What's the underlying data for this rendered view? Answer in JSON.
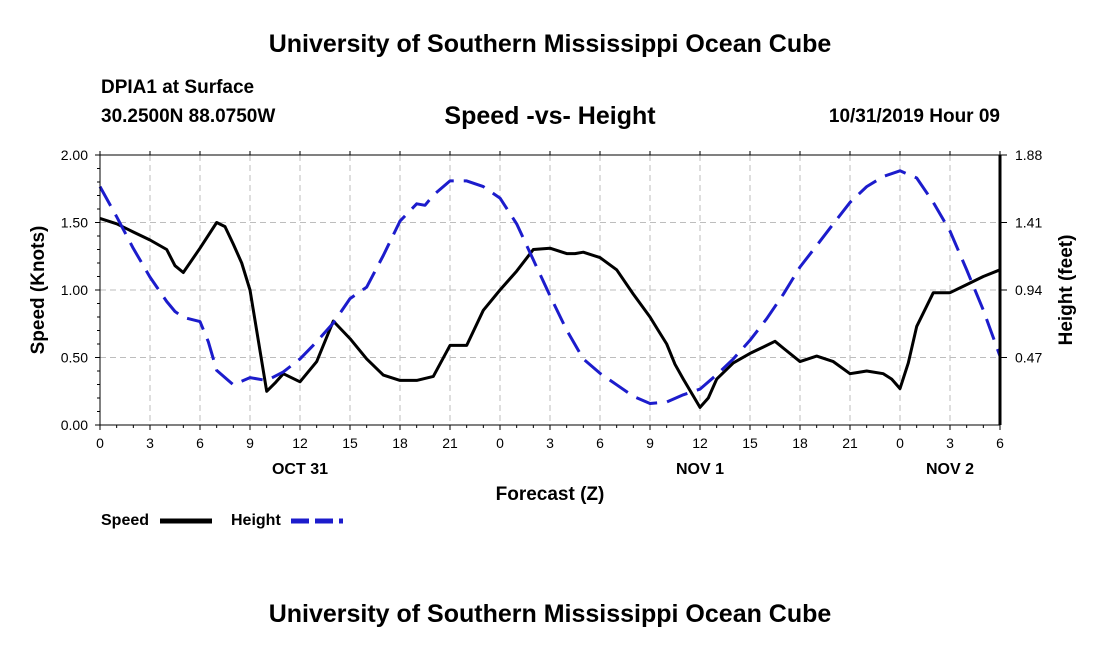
{
  "header": {
    "title": "University of Southern Mississippi Ocean Cube",
    "station": "DPIA1 at Surface",
    "coordinates": "30.2500N 88.0750W",
    "subtitle": "Speed -vs- Height",
    "datetime": "10/31/2019 Hour 09"
  },
  "footer": {
    "title": "University of Southern Mississippi Ocean Cube"
  },
  "chart_data": {
    "type": "line",
    "title": "Speed -vs- Height",
    "xlabel": "Forecast (Z)",
    "ylabel": "Speed (Knots)",
    "y2label": "Height (feet)",
    "xlim": [
      0,
      54
    ],
    "ylim": [
      0,
      2.0
    ],
    "y2lim": [
      0.0,
      1.88
    ],
    "grid": true,
    "legend_position": "bottom-left",
    "x_ticks": [
      0,
      3,
      6,
      9,
      12,
      15,
      18,
      21,
      24,
      27,
      30,
      33,
      36,
      39,
      42,
      45,
      48,
      51,
      54
    ],
    "x_tick_labels": [
      "0",
      "3",
      "6",
      "9",
      "12",
      "15",
      "18",
      "21",
      "0",
      "3",
      "6",
      "9",
      "12",
      "15",
      "18",
      "21",
      "0",
      "3",
      "6"
    ],
    "y_ticks": [
      0.0,
      0.5,
      1.0,
      1.5,
      2.0
    ],
    "y_tick_labels": [
      "0.00",
      "0.50",
      "1.00",
      "1.50",
      "2.00"
    ],
    "y2_ticks": [
      0.47,
      0.94,
      1.41,
      1.88
    ],
    "y2_tick_labels": [
      "0.47",
      "0.94",
      "1.41",
      "1.88"
    ],
    "date_labels": [
      {
        "x": 12,
        "label": "OCT 31"
      },
      {
        "x": 36,
        "label": "NOV 1"
      },
      {
        "x": 51,
        "label": "NOV 2"
      }
    ],
    "series": [
      {
        "name": "Speed",
        "color": "#000000",
        "dash": "solid",
        "axis": "left",
        "x": [
          0,
          1,
          2,
          3,
          4,
          4.5,
          5,
          6,
          7,
          7.5,
          8,
          8.5,
          9,
          10,
          10.5,
          11,
          12,
          13,
          14,
          15,
          16,
          17,
          18,
          19,
          20,
          21,
          22,
          23,
          24,
          25,
          25.5,
          26,
          27,
          28,
          28.5,
          29,
          30,
          31,
          32,
          33,
          33.5,
          34,
          34.5,
          35,
          36,
          36.5,
          37,
          38,
          39,
          40,
          40.5,
          41,
          42,
          43,
          44,
          45,
          45.5,
          46,
          47,
          47.5,
          48,
          48.5,
          49,
          50,
          51,
          52,
          53,
          54
        ],
        "values": [
          1.53,
          1.49,
          1.43,
          1.37,
          1.3,
          1.18,
          1.13,
          1.31,
          1.5,
          1.47,
          1.34,
          1.2,
          1.0,
          0.25,
          0.31,
          0.38,
          0.32,
          0.47,
          0.77,
          0.64,
          0.49,
          0.37,
          0.33,
          0.33,
          0.36,
          0.59,
          0.59,
          0.85,
          1.0,
          1.14,
          1.22,
          1.3,
          1.31,
          1.27,
          1.27,
          1.28,
          1.24,
          1.15,
          0.97,
          0.8,
          0.7,
          0.6,
          0.45,
          0.34,
          0.13,
          0.2,
          0.34,
          0.46,
          0.53,
          0.59,
          0.62,
          0.57,
          0.47,
          0.51,
          0.47,
          0.38,
          0.39,
          0.4,
          0.38,
          0.34,
          0.27,
          0.46,
          0.73,
          0.98,
          0.98,
          1.04,
          1.1,
          1.15
        ]
      },
      {
        "name": "Height",
        "color": "#1c1ccc",
        "dash": "dashed",
        "axis": "right",
        "x": [
          0,
          1,
          2,
          3,
          4,
          4.5,
          5,
          6,
          6.5,
          7,
          8,
          9,
          10,
          11,
          12,
          13,
          14,
          15,
          16,
          17,
          18,
          19,
          19.5,
          20,
          21,
          22,
          23,
          24,
          25,
          26,
          27,
          28,
          29,
          30,
          31,
          32,
          33,
          34,
          35,
          36,
          37,
          38,
          39,
          40,
          41,
          42,
          43,
          44,
          45,
          46,
          47,
          48,
          49,
          50,
          51,
          52,
          53,
          54
        ],
        "values": [
          1.66,
          1.45,
          1.23,
          1.03,
          0.86,
          0.79,
          0.75,
          0.72,
          0.58,
          0.38,
          0.28,
          0.33,
          0.31,
          0.37,
          0.46,
          0.58,
          0.71,
          0.88,
          0.96,
          1.18,
          1.42,
          1.54,
          1.53,
          1.6,
          1.7,
          1.7,
          1.66,
          1.58,
          1.4,
          1.15,
          0.9,
          0.66,
          0.46,
          0.36,
          0.28,
          0.2,
          0.15,
          0.16,
          0.21,
          0.25,
          0.35,
          0.46,
          0.59,
          0.74,
          0.91,
          1.1,
          1.25,
          1.4,
          1.55,
          1.66,
          1.73,
          1.77,
          1.72,
          1.55,
          1.35,
          1.08,
          0.8,
          0.48
        ]
      }
    ]
  }
}
